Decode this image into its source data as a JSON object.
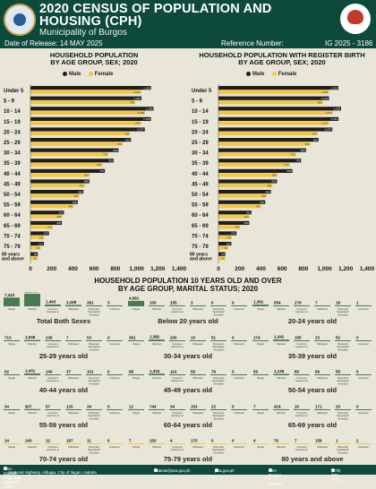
{
  "header": {
    "title_line1": "2020 CENSUS OF POPULATION AND",
    "title_line2": "HOUSING (CPH)",
    "subtitle": "Municipality of  Burgos",
    "release_label": "Date of Release: 14 MAY 2025",
    "reference_label": "Reference Number:",
    "reference_value": "IG 2025 - 3186"
  },
  "colors": {
    "male": "#1e1e1e",
    "female": "#f5c842",
    "green": "#0e4a3c"
  },
  "chart_data": [
    {
      "type": "bar",
      "title_line1": "HOUSEHOLD POPULATION",
      "title_line2": "BY AGE GROUP, SEX; 2020",
      "categories": [
        "Under 5",
        "5 - 9",
        "10 - 14",
        "15 - 19",
        "20 - 24",
        "25 - 29",
        "30 - 34",
        "35 - 39",
        "40 - 44",
        "45 - 49",
        "50 - 54",
        "55 - 59",
        "60 - 64",
        "65 - 69",
        "70 - 74",
        "75 - 79",
        "80 years and above"
      ],
      "series": [
        {
          "name": "Male",
          "values": [
            1135,
            1046,
            1159,
            1135,
            1077,
            947,
            829,
            783,
            701,
            556,
            499,
            446,
            316,
            296,
            175,
            127,
            69
          ]
        },
        {
          "name": "Female",
          "values": [
            1043,
            989,
            1080,
            1045,
            938,
            870,
            734,
            676,
            559,
            512,
            460,
            406,
            298,
            210,
            131,
            96,
            69
          ]
        }
      ],
      "xticks": [
        "0",
        "200",
        "400",
        "600",
        "800",
        "1,000",
        "1,200",
        "1,400"
      ],
      "xlim": [
        0,
        1400
      ],
      "legend": [
        "Male",
        "Female"
      ]
    },
    {
      "type": "bar",
      "title_line1": "HOUSEHOLD POPULATION WITH REGISTER BIRTH",
      "title_line2": "BY AGE GROUP, SEX; 2020",
      "categories": [
        "Under 5",
        "5 - 9",
        "10 - 14",
        "15 - 19",
        "20 - 24",
        "25 - 29",
        "30 - 34",
        "35 - 39",
        "40 - 44",
        "45 - 49",
        "50 - 54",
        "55 - 59",
        "60 - 64",
        "65 - 69",
        "70 - 74",
        "75 - 79",
        "80 years and above"
      ],
      "series": [
        {
          "name": "Male",
          "values": [
            1129,
            1042,
            1155,
            1131,
            1073,
            943,
            825,
            778,
            696,
            552,
            494,
            441,
            311,
            290,
            170,
            122,
            64
          ]
        },
        {
          "name": "Female",
          "values": [
            1040,
            985,
            1076,
            1041,
            934,
            866,
            730,
            672,
            555,
            508,
            456,
            401,
            293,
            205,
            126,
            92,
            65
          ]
        }
      ],
      "xticks": [
        "0",
        "200",
        "400",
        "600",
        "800",
        "1,000",
        "1,200",
        "1,400"
      ],
      "xlim": [
        0,
        1400
      ],
      "legend": [
        "Male",
        "Female"
      ]
    },
    {
      "type": "bar",
      "title_line1": "HOUSEHOLD POPULATION 10 YEARS OLD AND OVER",
      "title_line2": "BY AGE GROUP, MARITAL STATUS; 2020",
      "categories": [
        "Single",
        "Married",
        "Common Law/Live-in",
        "Widowed",
        "Divorced/ Separated/ Annulled",
        "Unknown"
      ],
      "panels": [
        {
          "label": "Total Both Sexes",
          "values": [
            7423,
            10672,
            1493,
            1159,
            381,
            3
          ]
        },
        {
          "label": "Below 20 years old",
          "values": [
            4581,
            100,
            155,
            3,
            0,
            0
          ]
        },
        {
          "label": "20-24 years old",
          "values": [
            1391,
            554,
            278,
            7,
            18,
            1
          ]
        },
        {
          "label": "25-29 years old",
          "values": [
            713,
            1036,
            238,
            7,
            53,
            0
          ]
        },
        {
          "label": "30-34 years old",
          "values": [
            361,
            1382,
            200,
            10,
            51,
            0
          ]
        },
        {
          "label": "35-39 years old",
          "values": [
            174,
            1342,
            155,
            23,
            52,
            0
          ]
        },
        {
          "label": "40-44 years old",
          "values": [
            92,
            1431,
            140,
            37,
            101,
            0
          ]
        },
        {
          "label": "45-49 years old",
          "values": [
            68,
            1334,
            114,
            59,
            79,
            0
          ]
        },
        {
          "label": "50-54 years old",
          "values": [
            56,
            1136,
            80,
            66,
            55,
            0
          ]
        },
        {
          "label": "55-59 years old",
          "values": [
            34,
            907,
            57,
            120,
            34,
            0
          ]
        },
        {
          "label": "60-64 years old",
          "values": [
            12,
            744,
            34,
            153,
            22,
            0
          ]
        },
        {
          "label": "65-69 years old",
          "values": [
            7,
            424,
            16,
            171,
            20,
            0
          ]
        },
        {
          "label": "70-74 years old",
          "values": [
            14,
            243,
            12,
            187,
            11,
            0
          ]
        },
        {
          "label": "75-79 years old",
          "values": [
            7,
            150,
            4,
            175,
            0,
            0
          ]
        },
        {
          "label": "80 years and above",
          "values": [
            4,
            79,
            7,
            159,
            1,
            2
          ]
        }
      ]
    }
  ],
  "footer": {
    "office": "PSA-Isabela Provincial Statistics Office",
    "address": "National Highway, Alibagu, City of Ilagan, Isabela",
    "email": "isabela@psa.gov.ph",
    "web": "psa.gov.ph",
    "fb": "PSA Region II Isabela",
    "phone": "(078) 323-0781"
  }
}
